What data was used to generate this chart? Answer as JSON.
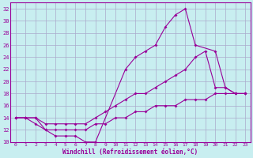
{
  "bg_color": "#c8eef0",
  "line_color": "#990099",
  "grid_color": "#aaaacc",
  "xlabel": "Windchill (Refroidissement éolien,°C)",
  "xlabel_color": "#990099",
  "tick_color": "#990099",
  "xlim": [
    -0.5,
    23.5
  ],
  "ylim": [
    10,
    33
  ],
  "yticks": [
    10,
    12,
    14,
    16,
    18,
    20,
    22,
    24,
    26,
    28,
    30,
    32
  ],
  "xticks": [
    0,
    1,
    2,
    3,
    4,
    5,
    6,
    7,
    8,
    9,
    10,
    11,
    12,
    13,
    14,
    15,
    16,
    17,
    18,
    19,
    20,
    21,
    22,
    23
  ],
  "line1_x": [
    0,
    1,
    2,
    3,
    4,
    5,
    6,
    7,
    8,
    11,
    12,
    13,
    14,
    15,
    16,
    17,
    18,
    20,
    21,
    22,
    23
  ],
  "line1_y": [
    14,
    14,
    14,
    12,
    11,
    11,
    11,
    10,
    10,
    22,
    24,
    25,
    26,
    29,
    31,
    32,
    26,
    25,
    19,
    18,
    18
  ],
  "line2_x": [
    0,
    1,
    2,
    3,
    4,
    5,
    6,
    7,
    8,
    9,
    10,
    11,
    12,
    13,
    14,
    15,
    16,
    17,
    18,
    19,
    20,
    21,
    22,
    23
  ],
  "line2_y": [
    14,
    14,
    14,
    13,
    13,
    13,
    13,
    13,
    14,
    15,
    16,
    17,
    18,
    18,
    19,
    20,
    21,
    22,
    24,
    25,
    19,
    19,
    18,
    18
  ],
  "line3_x": [
    0,
    1,
    2,
    3,
    4,
    5,
    6,
    7,
    8,
    9,
    10,
    11,
    12,
    13,
    14,
    15,
    16,
    17,
    18,
    19,
    20,
    21,
    22,
    23
  ],
  "line3_y": [
    14,
    14,
    13,
    12,
    12,
    12,
    12,
    12,
    13,
    13,
    14,
    14,
    15,
    15,
    16,
    16,
    16,
    17,
    17,
    17,
    18,
    18,
    18,
    18
  ]
}
